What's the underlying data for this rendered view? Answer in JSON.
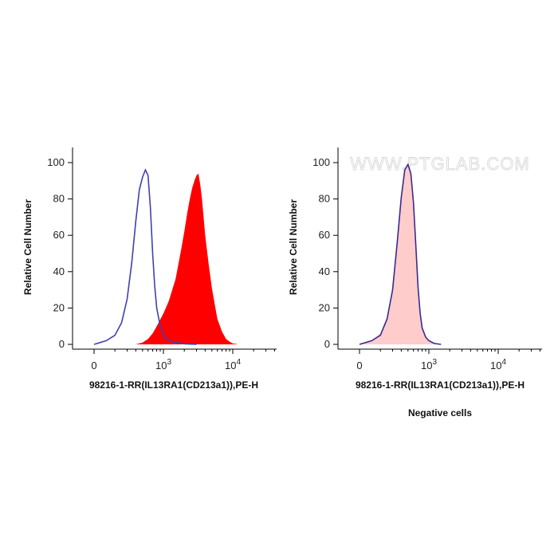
{
  "colors": {
    "stained_fill": "#ff0000",
    "control_line": "#4040b0",
    "negative_fill": "#ffcccc",
    "negative_line": "#3a2a90",
    "axis": "#000000"
  },
  "chart_data": [
    {
      "type": "area",
      "xlabel": "98216-1-RR(IL13RA1(CD213a1)),PE-H",
      "ylabel": "Relative Cell Number",
      "xscale": "biexponential",
      "x_ticks": [
        {
          "value": 0,
          "label": "0"
        },
        {
          "value": 1000,
          "label": "10",
          "sup": "3"
        },
        {
          "value": 10000,
          "label": "10",
          "sup": "4"
        }
      ],
      "y_ticks": [
        0,
        20,
        40,
        60,
        80,
        100
      ],
      "ylim": [
        0,
        100
      ],
      "series": [
        {
          "style": "filled",
          "color": "#ff0000",
          "x": [
            400,
            500,
            600,
            700,
            800,
            1000,
            1200,
            1500,
            1800,
            2000,
            2200,
            2400,
            2600,
            2800,
            3000,
            3200,
            3400,
            3600,
            3800,
            4000,
            4500,
            5000,
            5500,
            6000,
            7000,
            8000,
            9000,
            10000,
            12000
          ],
          "y": [
            0,
            1,
            3,
            6,
            10,
            17,
            24,
            36,
            52,
            62,
            72,
            80,
            86,
            90,
            93,
            94,
            88,
            80,
            70,
            60,
            44,
            31,
            22,
            14,
            7,
            3,
            1.5,
            0.5,
            0
          ]
        },
        {
          "style": "line",
          "color": "#4040b0",
          "x": [
            80,
            150,
            200,
            250,
            300,
            350,
            400,
            450,
            500,
            550,
            600,
            650,
            700,
            750,
            800,
            900,
            1000,
            1200,
            1500,
            2000,
            3000
          ],
          "y": [
            0,
            2,
            5,
            12,
            25,
            45,
            68,
            85,
            92,
            96,
            93,
            75,
            50,
            32,
            20,
            10,
            5,
            2,
            1,
            0.3,
            0
          ]
        }
      ]
    },
    {
      "type": "area",
      "xlabel": "98216-1-RR(IL13RA1(CD213a1)),PE-H",
      "ylabel": "Relative Cell Number",
      "caption": "Negative cells",
      "watermark": "WWW.PTGLAB.COM",
      "xscale": "biexponential",
      "x_ticks": [
        {
          "value": 0,
          "label": "0"
        },
        {
          "value": 1000,
          "label": "10",
          "sup": "3"
        },
        {
          "value": 10000,
          "label": "10",
          "sup": "4"
        }
      ],
      "y_ticks": [
        0,
        20,
        40,
        60,
        80,
        100
      ],
      "ylim": [
        0,
        100
      ],
      "series": [
        {
          "style": "filled",
          "color": "#ffcccc",
          "x": [
            100,
            150,
            200,
            250,
            300,
            350,
            400,
            450,
            500,
            550,
            600,
            650,
            700,
            750,
            800,
            900,
            1000,
            1200,
            1500
          ],
          "y": [
            0,
            2,
            6,
            15,
            30,
            55,
            80,
            95,
            99,
            95,
            80,
            55,
            32,
            18,
            10,
            4,
            2,
            0.5,
            0
          ]
        },
        {
          "style": "line",
          "color": "#3a2a90",
          "x": [
            100,
            150,
            200,
            250,
            300,
            350,
            400,
            450,
            500,
            550,
            600,
            650,
            700,
            750,
            800,
            900,
            1000,
            1200,
            1500
          ],
          "y": [
            0,
            2,
            5,
            14,
            30,
            56,
            81,
            96,
            99,
            94,
            78,
            54,
            31,
            17,
            9,
            4,
            2,
            0.5,
            0
          ]
        }
      ]
    }
  ]
}
